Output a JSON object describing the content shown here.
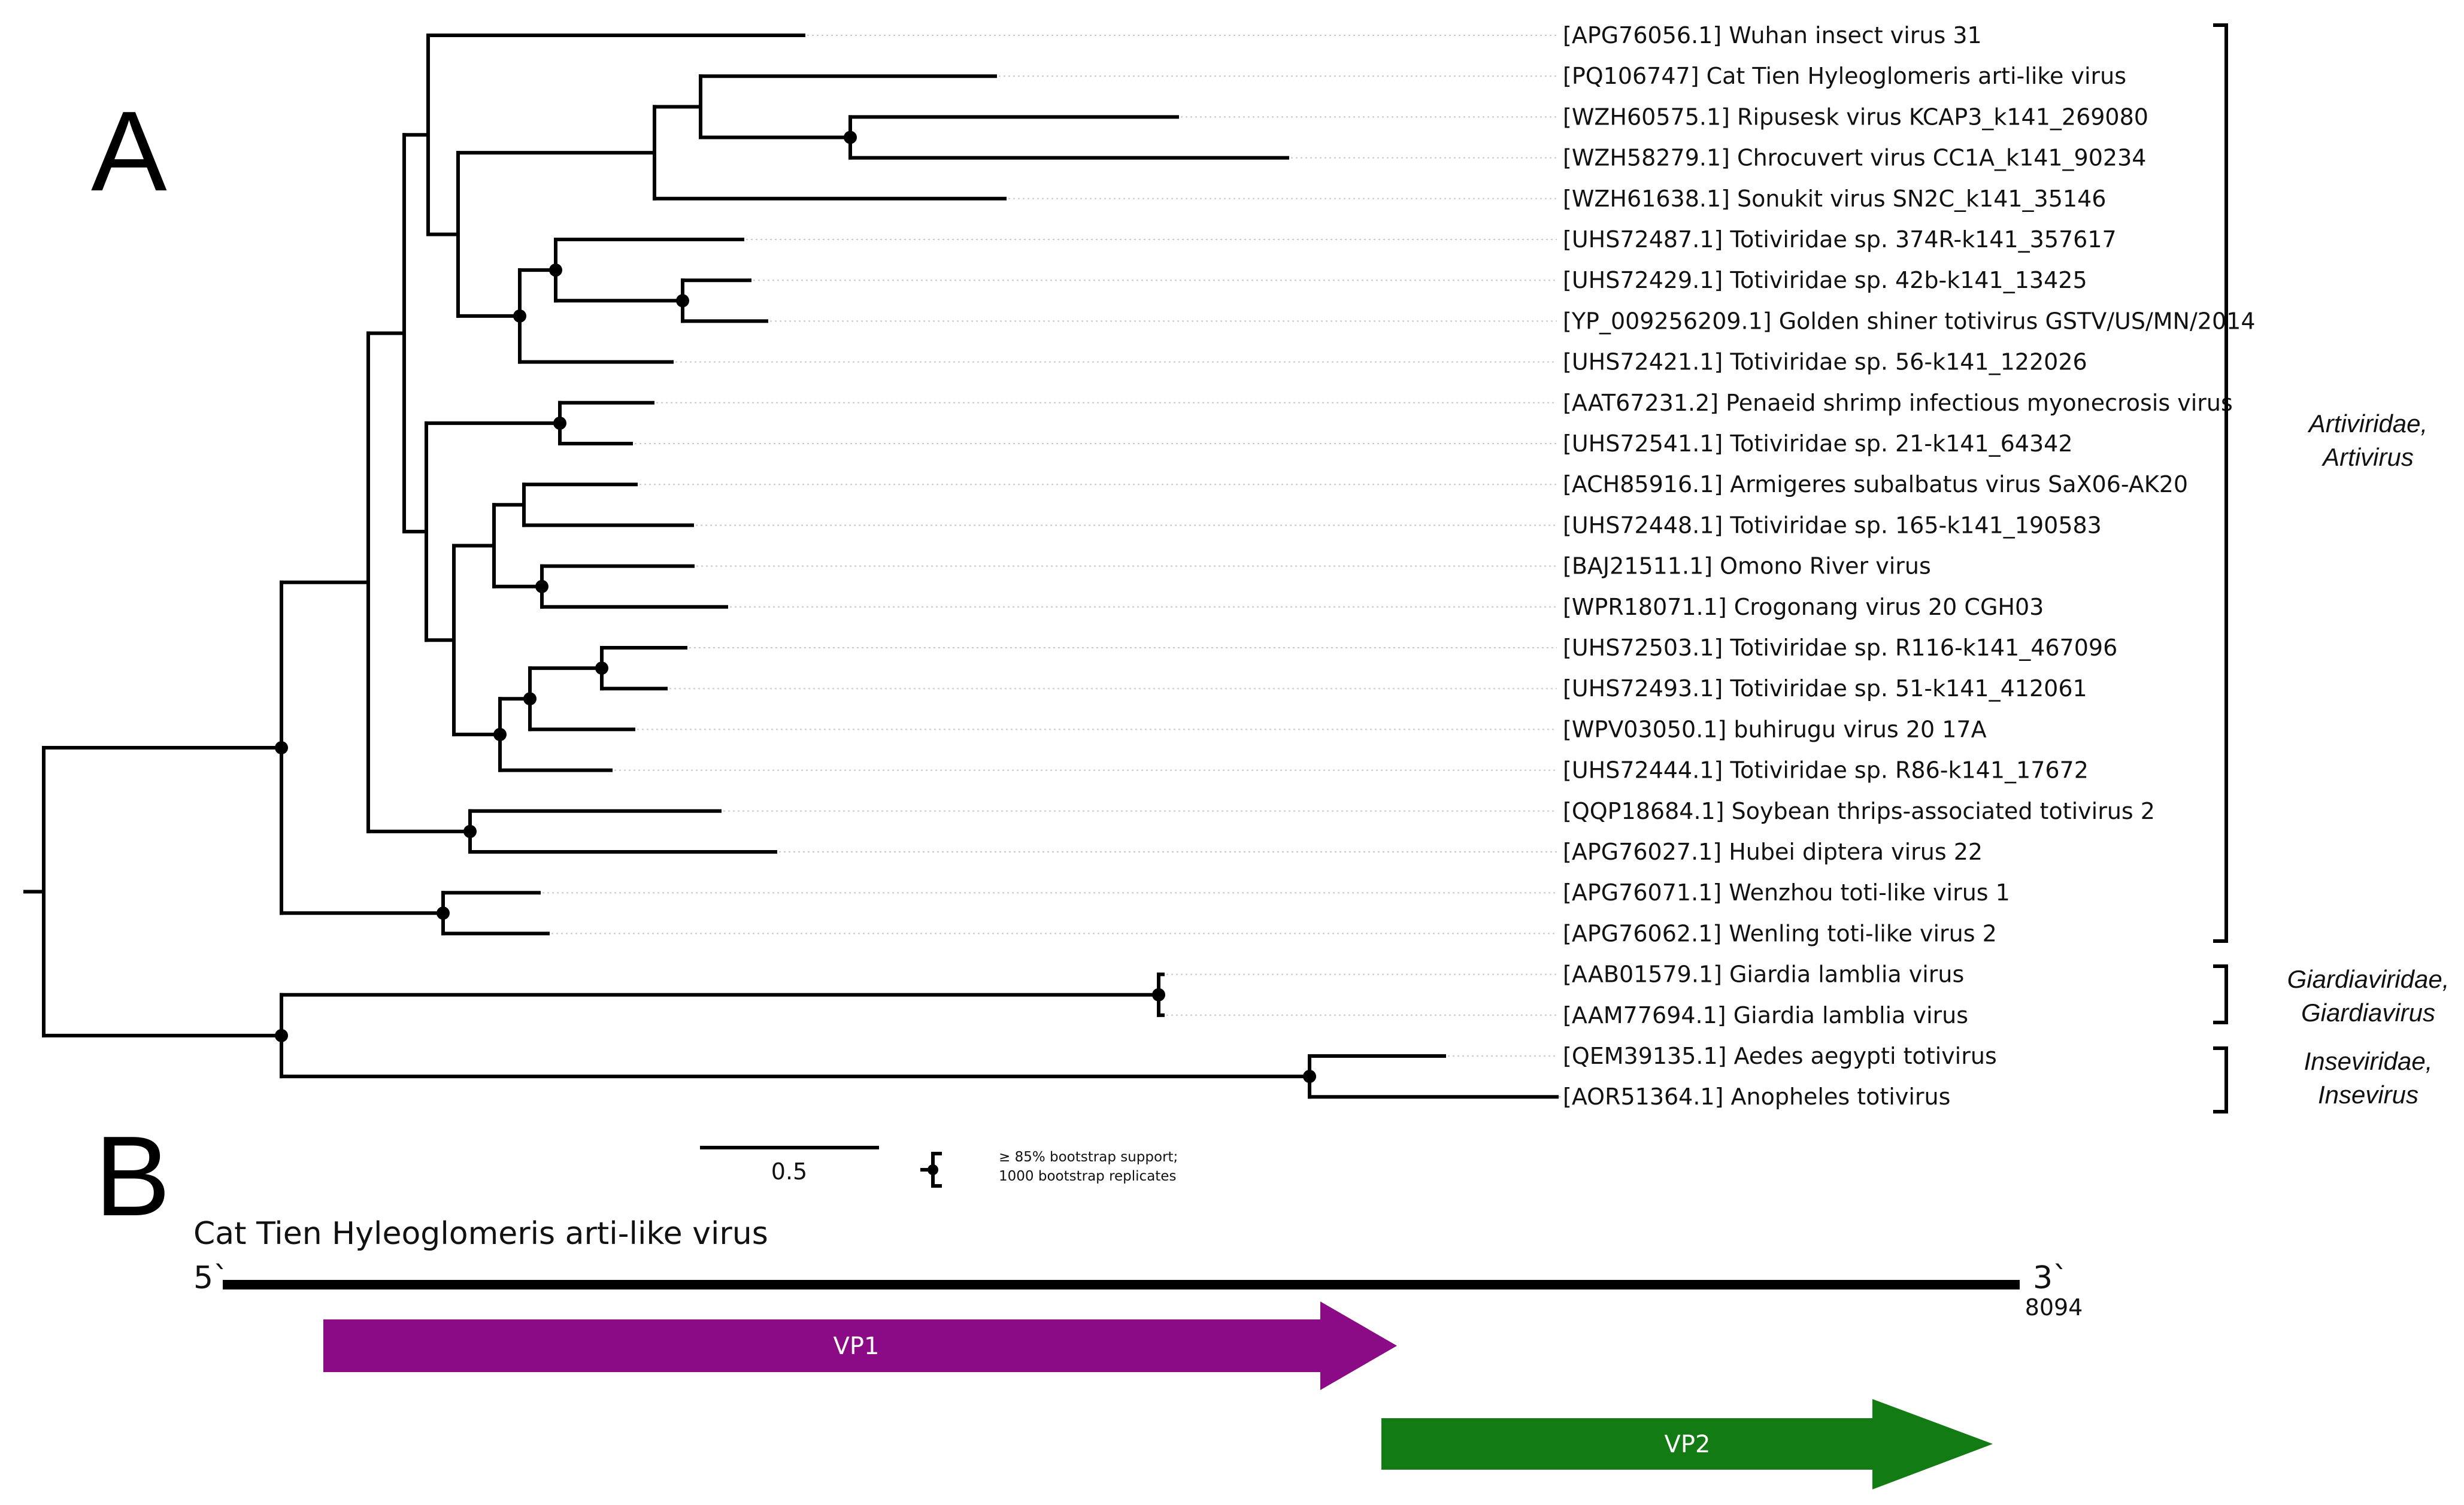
{
  "panel_a_label": "A",
  "panel_b_label": "B",
  "accent_color": "#e8242b",
  "leaves": [
    {
      "text": "[APG76056.1] Wuhan insect virus 31"
    },
    {
      "text": "[PQ106747] Cat Tien Hyleoglomeris arti-like virus",
      "highlight": true
    },
    {
      "text": "[WZH60575.1] Ripusesk virus KCAP3_k141_269080"
    },
    {
      "text": "[WZH58279.1] Chrocuvert virus CC1A_k141_90234"
    },
    {
      "text": "[WZH61638.1] Sonukit virus SN2C_k141_35146"
    },
    {
      "text": "[UHS72487.1] Totiviridae sp. 374R-k141_357617"
    },
    {
      "text": "[UHS72429.1] Totiviridae sp. 42b-k141_13425"
    },
    {
      "text": "[YP_009256209.1] Golden shiner totivirus GSTV/US/MN/2014"
    },
    {
      "text": "[UHS72421.1] Totiviridae sp. 56-k141_122026"
    },
    {
      "text": "[AAT67231.2] Penaeid shrimp infectious myonecrosis virus"
    },
    {
      "text": "[UHS72541.1] Totiviridae sp. 21-k141_64342"
    },
    {
      "text": "[ACH85916.1] Armigeres subalbatus virus SaX06-AK20"
    },
    {
      "text": "[UHS72448.1] Totiviridae sp. 165-k141_190583"
    },
    {
      "text": "[BAJ21511.1] Omono River virus"
    },
    {
      "text": "[WPR18071.1] Crogonang virus 20 CGH03"
    },
    {
      "text": "[UHS72503.1] Totiviridae sp. R116-k141_467096"
    },
    {
      "text": "[UHS72493.1] Totiviridae sp. 51-k141_412061"
    },
    {
      "text": "[WPV03050.1] buhirugu virus 20 17A"
    },
    {
      "text": "[UHS72444.1] Totiviridae sp. R86-k141_17672"
    },
    {
      "text": "[QQP18684.1] Soybean thrips-associated totivirus 2"
    },
    {
      "text": "[APG76027.1] Hubei diptera virus 22"
    },
    {
      "text": "[APG76071.1] Wenzhou toti-like virus 1"
    },
    {
      "text": "[APG76062.1] Wenling toti-like virus 2"
    },
    {
      "text": "[AAB01579.1] Giardia lamblia virus"
    },
    {
      "text": "[AAM77694.1] Giardia lamblia virus"
    },
    {
      "text": "[QEM39135.1] Aedes aegypti totivirus"
    },
    {
      "text": "[AOR51364.1] Anopheles totivirus"
    }
  ],
  "clades": [
    {
      "line1": "Artiviridae,",
      "line2": "Artivirus"
    },
    {
      "line1": "Giardiaviridae,",
      "line2": "Giardiavirus"
    },
    {
      "line1": "Inseviridae,",
      "line2": "Insevirus"
    }
  ],
  "scale_bar": {
    "value": 0.5,
    "label": "0.5"
  },
  "bootstrap_legend": {
    "line1": "≥ 85% bootstrap support;",
    "line2": "1000 bootstrap replicates"
  },
  "genome": {
    "title": "Cat Tien Hyleoglomeris arti-like virus",
    "five_prime": "5`",
    "three_prime": "3`",
    "length_label": "8094",
    "length": 8094,
    "genes": [
      {
        "name": "VP1",
        "color": "#8b0a86"
      },
      {
        "name": "VP2",
        "color": "#137b13"
      }
    ]
  }
}
